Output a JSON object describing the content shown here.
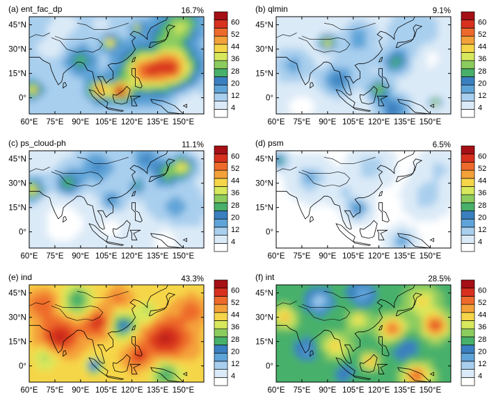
{
  "colorbar": {
    "levels": [
      "4",
      "12",
      "20",
      "28",
      "36",
      "44",
      "52",
      "60"
    ],
    "colors": [
      "#ffffff",
      "#dbeaf7",
      "#a9cfee",
      "#5fa4d8",
      "#3a7fc0",
      "#47b06b",
      "#8ccc5e",
      "#d7e85c",
      "#f6d649",
      "#f4a13a",
      "#ee6a2c",
      "#d7301f",
      "#a50f15"
    ]
  },
  "axes": {
    "x_ticks": [
      "60°E",
      "75°E",
      "90°E",
      "105°E",
      "120°E",
      "135°E",
      "150°E"
    ],
    "y_ticks": [
      "45°N",
      "30°N",
      "15°N",
      "0°"
    ]
  },
  "chart_data": [
    {
      "type": "heatmap",
      "label": "(a) ent_fac_dp",
      "percent": "16.7%",
      "xlim": [
        60,
        162
      ],
      "ylim": [
        -10,
        50
      ],
      "base": 14,
      "blobs": [
        {
          "lon": 128,
          "lat": 17,
          "v": 56,
          "r": 9
        },
        {
          "lon": 145,
          "lat": 19,
          "v": 52,
          "r": 8
        },
        {
          "lon": 113,
          "lat": 4,
          "v": 62,
          "r": 4
        },
        {
          "lon": 101,
          "lat": 5,
          "v": 56,
          "r": 4
        },
        {
          "lon": 107,
          "lat": 34,
          "v": 46,
          "r": 3
        },
        {
          "lon": 123,
          "lat": 43,
          "v": 40,
          "r": 2
        },
        {
          "lon": 62,
          "lat": 5,
          "v": 48,
          "r": 3
        },
        {
          "lon": 90,
          "lat": 23,
          "v": 30,
          "r": 5
        },
        {
          "lon": 140,
          "lat": 38,
          "v": 28,
          "r": 8
        },
        {
          "lon": 150,
          "lat": 45,
          "v": 34,
          "r": 6
        },
        {
          "lon": 72,
          "lat": 30,
          "v": 8,
          "r": 6
        },
        {
          "lon": 155,
          "lat": -5,
          "v": 6,
          "r": 8
        },
        {
          "lon": 130,
          "lat": 30,
          "v": 6,
          "r": 5
        },
        {
          "lon": 80,
          "lat": 45,
          "v": 8,
          "r": 7
        },
        {
          "lon": 102,
          "lat": 45,
          "v": 9,
          "r": 5
        }
      ]
    },
    {
      "type": "heatmap",
      "label": "(b) qlmin",
      "percent": "9.1%",
      "xlim": [
        60,
        162
      ],
      "ylim": [
        -10,
        50
      ],
      "base": 8,
      "blobs": [
        {
          "lon": 90,
          "lat": 34,
          "v": 44,
          "r": 3
        },
        {
          "lon": 153,
          "lat": -3,
          "v": 42,
          "r": 2
        },
        {
          "lon": 120,
          "lat": 5,
          "v": 32,
          "r": 4
        },
        {
          "lon": 130,
          "lat": 22,
          "v": 28,
          "r": 5
        },
        {
          "lon": 128,
          "lat": -7,
          "v": 26,
          "r": 6
        },
        {
          "lon": 95,
          "lat": 10,
          "v": 22,
          "r": 6
        },
        {
          "lon": 108,
          "lat": 38,
          "v": 20,
          "r": 6
        },
        {
          "lon": 140,
          "lat": 40,
          "v": 16,
          "r": 10
        },
        {
          "lon": 70,
          "lat": 20,
          "v": 18,
          "r": 7
        },
        {
          "lon": 105,
          "lat": 20,
          "v": 14,
          "r": 8
        },
        {
          "lon": 150,
          "lat": 25,
          "v": 3,
          "r": 6
        },
        {
          "lon": 75,
          "lat": -5,
          "v": 3,
          "r": 6
        }
      ]
    },
    {
      "type": "heatmap",
      "label": "(c) ps_cloud-ph",
      "percent": "11.1%",
      "xlim": [
        60,
        162
      ],
      "ylim": [
        -10,
        50
      ],
      "base": 10,
      "blobs": [
        {
          "lon": 62,
          "lat": 26,
          "v": 44,
          "r": 4
        },
        {
          "lon": 83,
          "lat": 30,
          "v": 32,
          "r": 5
        },
        {
          "lon": 150,
          "lat": 40,
          "v": 42,
          "r": 4
        },
        {
          "lon": 140,
          "lat": 36,
          "v": 32,
          "r": 5
        },
        {
          "lon": 123,
          "lat": 28,
          "v": 28,
          "r": 3
        },
        {
          "lon": 108,
          "lat": 20,
          "v": 24,
          "r": 4
        },
        {
          "lon": 100,
          "lat": 40,
          "v": 22,
          "r": 7
        },
        {
          "lon": 128,
          "lat": 45,
          "v": 22,
          "r": 6
        },
        {
          "lon": 145,
          "lat": 15,
          "v": 18,
          "r": 8
        },
        {
          "lon": 80,
          "lat": 5,
          "v": 3,
          "r": 12
        },
        {
          "lon": 140,
          "lat": -5,
          "v": 3,
          "r": 8
        },
        {
          "lon": 108,
          "lat": 2,
          "v": 4,
          "r": 6
        }
      ]
    },
    {
      "type": "heatmap",
      "label": "(d) psm",
      "percent": "6.5%",
      "xlim": [
        60,
        162
      ],
      "ylim": [
        -10,
        50
      ],
      "base": 5,
      "blobs": [
        {
          "lon": 62,
          "lat": 44,
          "v": 30,
          "r": 3
        },
        {
          "lon": 108,
          "lat": 14,
          "v": 24,
          "r": 4
        },
        {
          "lon": 133,
          "lat": -6,
          "v": 22,
          "r": 4
        },
        {
          "lon": 80,
          "lat": 33,
          "v": 18,
          "r": 6
        },
        {
          "lon": 115,
          "lat": 40,
          "v": 16,
          "r": 6
        },
        {
          "lon": 148,
          "lat": 22,
          "v": 16,
          "r": 6
        },
        {
          "lon": 100,
          "lat": 25,
          "v": 12,
          "r": 5
        },
        {
          "lon": 155,
          "lat": 38,
          "v": 12,
          "r": 6
        }
      ]
    },
    {
      "type": "heatmap",
      "label": "(e) ind",
      "percent": "43.3%",
      "xlim": [
        60,
        162
      ],
      "ylim": [
        -10,
        50
      ],
      "base": 46,
      "blobs": [
        {
          "lon": 78,
          "lat": 18,
          "v": 64,
          "r": 8
        },
        {
          "lon": 140,
          "lat": 17,
          "v": 64,
          "r": 10
        },
        {
          "lon": 68,
          "lat": 38,
          "v": 58,
          "r": 6
        },
        {
          "lon": 100,
          "lat": 27,
          "v": 62,
          "r": 6
        },
        {
          "lon": 123,
          "lat": 5,
          "v": 58,
          "r": 5
        },
        {
          "lon": 155,
          "lat": 35,
          "v": 56,
          "r": 5
        },
        {
          "lon": 112,
          "lat": 42,
          "v": 54,
          "r": 5
        },
        {
          "lon": 115,
          "lat": 25,
          "v": 20,
          "r": 5
        },
        {
          "lon": 88,
          "lat": 40,
          "v": 26,
          "r": 6
        },
        {
          "lon": 98,
          "lat": 0,
          "v": 14,
          "r": 3
        },
        {
          "lon": 140,
          "lat": -5,
          "v": 26,
          "r": 6
        },
        {
          "lon": 130,
          "lat": 33,
          "v": 34,
          "r": 5
        },
        {
          "lon": 70,
          "lat": 5,
          "v": 34,
          "r": 5
        }
      ]
    },
    {
      "type": "heatmap",
      "label": "(f) int",
      "percent": "28.5%",
      "xlim": [
        60,
        162
      ],
      "ylim": [
        -10,
        50
      ],
      "base": 30,
      "blobs": [
        {
          "lon": 153,
          "lat": 25,
          "v": 60,
          "r": 5
        },
        {
          "lon": 128,
          "lat": 23,
          "v": 56,
          "r": 5
        },
        {
          "lon": 142,
          "lat": -6,
          "v": 58,
          "r": 5
        },
        {
          "lon": 115,
          "lat": 3,
          "v": 52,
          "r": 3
        },
        {
          "lon": 65,
          "lat": 30,
          "v": 50,
          "r": 4
        },
        {
          "lon": 95,
          "lat": 12,
          "v": 46,
          "r": 5
        },
        {
          "lon": 108,
          "lat": 28,
          "v": 44,
          "r": 4
        },
        {
          "lon": 145,
          "lat": 40,
          "v": 44,
          "r": 6
        },
        {
          "lon": 85,
          "lat": 40,
          "v": 14,
          "r": 5
        },
        {
          "lon": 110,
          "lat": 45,
          "v": 16,
          "r": 5
        },
        {
          "lon": 78,
          "lat": 10,
          "v": 20,
          "r": 5
        },
        {
          "lon": 135,
          "lat": 10,
          "v": 22,
          "r": 6
        },
        {
          "lon": 100,
          "lat": -5,
          "v": 24,
          "r": 5
        }
      ]
    }
  ]
}
